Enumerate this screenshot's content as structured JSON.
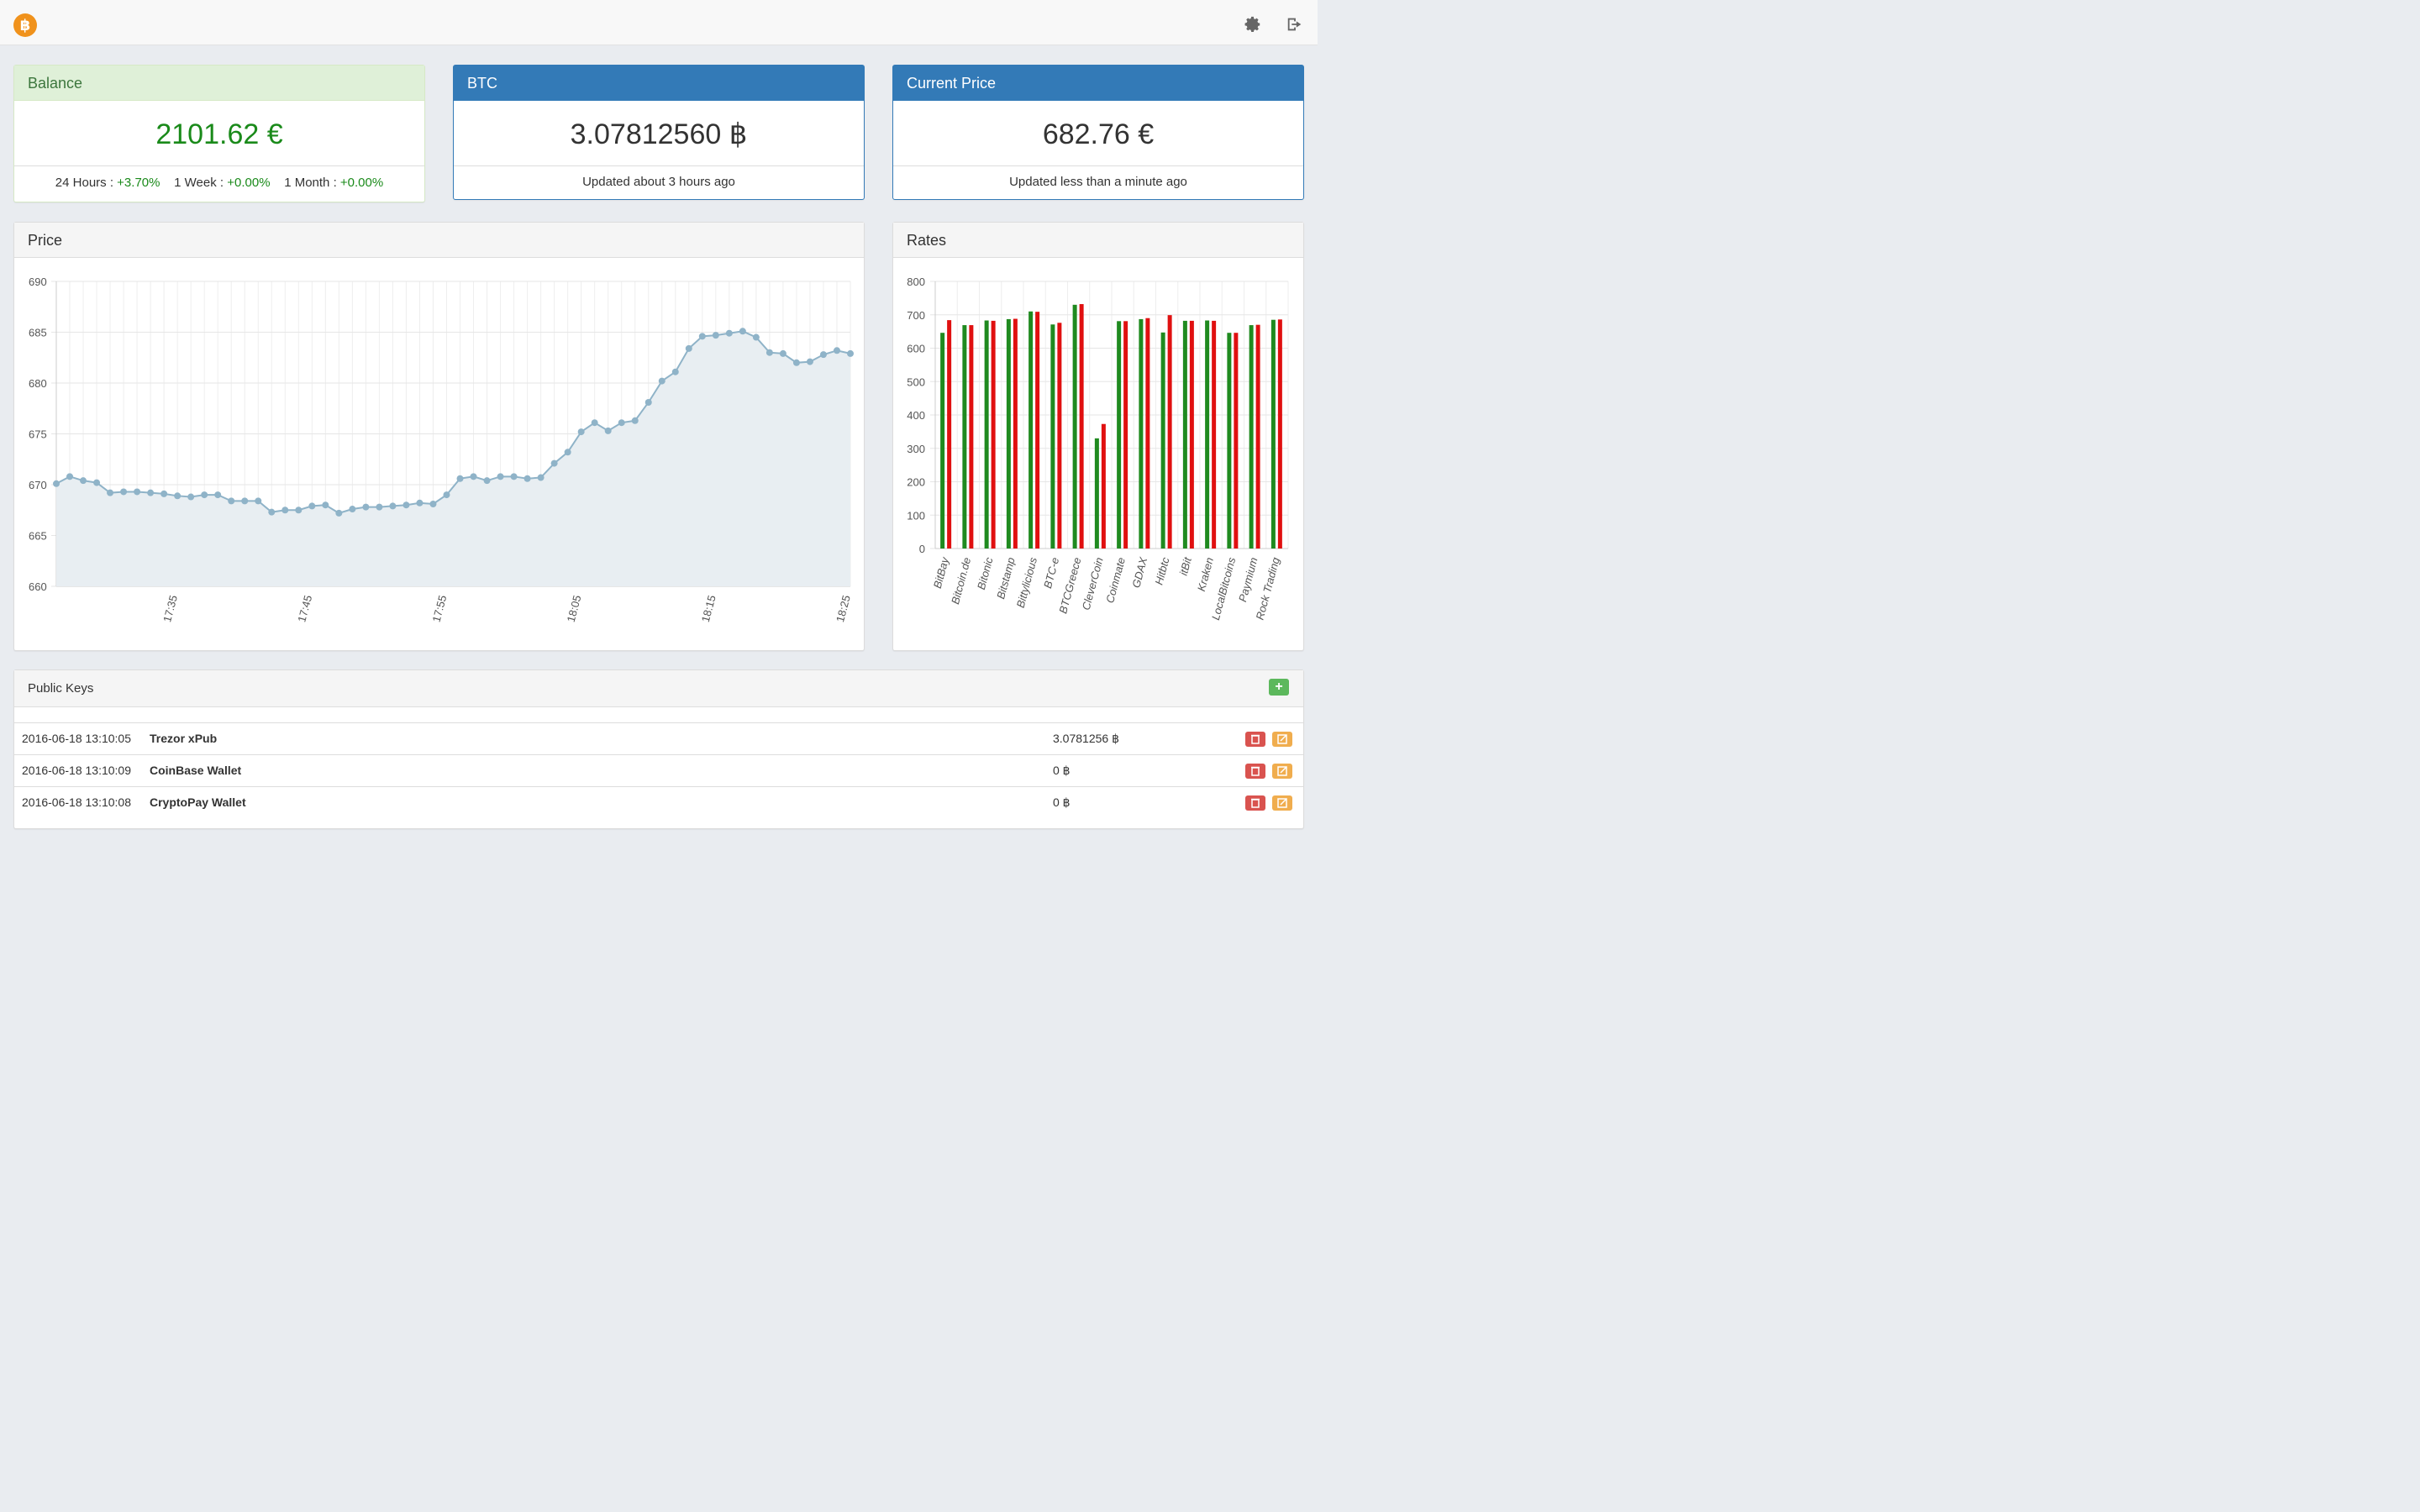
{
  "app": {
    "logo_glyph": "฿",
    "logo_color": "#f0921c"
  },
  "topbar": {
    "settings_icon": "gear-icon",
    "logout_icon": "logout-icon"
  },
  "balance": {
    "title": "Balance",
    "value": "2101.62 €",
    "h24_label": "24 Hours : ",
    "h24_value": "+3.70%",
    "w1_label": "1 Week : ",
    "w1_value": "+0.00%",
    "m1_label": "1 Month : ",
    "m1_value": "+0.00%"
  },
  "btc": {
    "title": "BTC",
    "value": "3.07812560 ฿",
    "updated": "Updated about 3 hours ago"
  },
  "current_price": {
    "title": "Current Price",
    "value": "682.76 €",
    "updated": "Updated less than a minute ago"
  },
  "price_panel": {
    "title": "Price"
  },
  "rates_panel": {
    "title": "Rates"
  },
  "public_keys": {
    "title": "Public Keys",
    "rows": [
      {
        "date": "2016-06-18 13:10:05",
        "name": "Trezor xPub",
        "balance": "3.0781256 ฿"
      },
      {
        "date": "2016-06-18 13:10:09",
        "name": "CoinBase Wallet",
        "balance": "0 ฿"
      },
      {
        "date": "2016-06-18 13:10:08",
        "name": "CryptoPay Wallet",
        "balance": "0 ฿"
      }
    ]
  },
  "colors": {
    "accent": "#337ab7",
    "positive": "#1a8a1a",
    "bid": "#1f8a1f",
    "ask": "#e01010",
    "line": "#8fb3c8"
  },
  "chart_data": [
    {
      "type": "area",
      "title": "Price",
      "ylim": [
        660,
        690
      ],
      "yticks": [
        660,
        665,
        670,
        675,
        680,
        685,
        690
      ],
      "xtick_labels": [
        "17:35",
        "17:45",
        "17:55",
        "18:05",
        "18:15",
        "18:25"
      ],
      "x_start": "17:26",
      "x_step_minutes": 1,
      "values": [
        670.1,
        670.8,
        670.4,
        670.2,
        669.2,
        669.3,
        669.3,
        669.2,
        669.1,
        668.9,
        668.8,
        669.0,
        669.0,
        668.4,
        668.4,
        668.4,
        667.3,
        667.5,
        667.5,
        667.9,
        668.0,
        667.2,
        667.6,
        667.8,
        667.8,
        667.9,
        668.0,
        668.2,
        668.1,
        669.0,
        670.6,
        670.8,
        670.4,
        670.8,
        670.8,
        670.6,
        670.7,
        672.1,
        673.2,
        675.2,
        676.1,
        675.3,
        676.1,
        676.3,
        678.1,
        680.2,
        681.1,
        683.4,
        684.6,
        684.7,
        684.9,
        685.1,
        684.5,
        683.0,
        682.9,
        682.0,
        682.1,
        682.8,
        683.2,
        682.9
      ]
    },
    {
      "type": "bar",
      "title": "Rates",
      "ylim": [
        0,
        800
      ],
      "yticks": [
        0,
        100,
        200,
        300,
        400,
        500,
        600,
        700,
        800
      ],
      "categories": [
        "BitBay",
        "Bitcoin.de",
        "Bitonic",
        "Bitstamp",
        "Bittylicious",
        "BTC-e",
        "BTCGreece",
        "CleverCoin",
        "Coinmate",
        "GDAX",
        "Hitbtc",
        "itBit",
        "Kraken",
        "LocalBitcoins",
        "Paymium",
        "Rock Trading"
      ],
      "series": [
        {
          "values": [
            646,
            669,
            683,
            687,
            710,
            671,
            730,
            330,
            681,
            687,
            647,
            682,
            683,
            646,
            669,
            685
          ]
        },
        {
          "values": [
            684,
            669,
            682,
            688,
            709,
            676,
            732,
            373,
            681,
            690,
            699,
            682,
            682,
            646,
            670,
            686
          ]
        }
      ]
    }
  ]
}
